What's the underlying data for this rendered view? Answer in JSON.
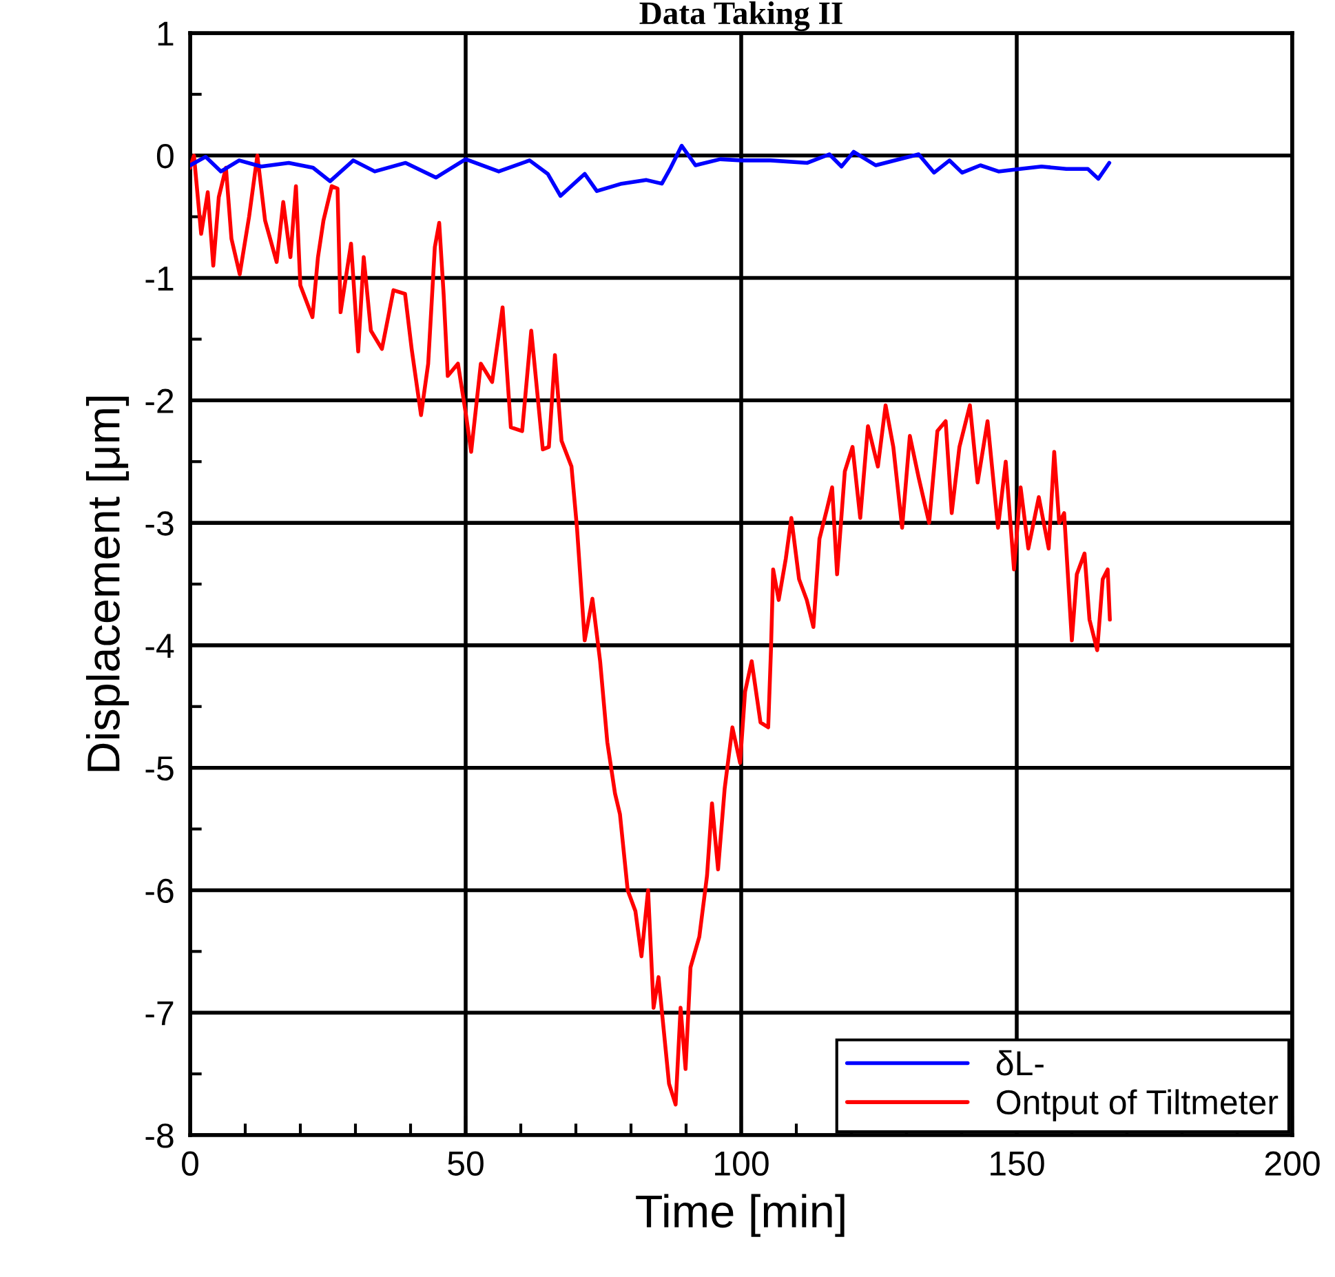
{
  "chart_data": {
    "type": "line",
    "title": "Data Taking II",
    "xlabel": "Time [min]",
    "ylabel": "Displacement [μm]",
    "xlim": [
      0,
      200
    ],
    "ylim": [
      -8,
      1
    ],
    "xticks": [
      0,
      {
        "value": 10,
        "label": null
      },
      {
        "value": 20,
        "label": null
      },
      {
        "value": 30,
        "label": null
      },
      {
        "value": 40,
        "label": null
      },
      50,
      {
        "value": 60,
        "label": null
      },
      {
        "value": 70,
        "label": null
      },
      {
        "value": 80,
        "label": null
      },
      {
        "value": 90,
        "label": null
      },
      100,
      {
        "value": 110,
        "label": null
      },
      {
        "value": 120,
        "label": null
      },
      {
        "value": 130,
        "label": null
      },
      {
        "value": 140,
        "label": null
      },
      150,
      {
        "value": 160,
        "label": null
      },
      {
        "value": 170,
        "label": null
      },
      {
        "value": 180,
        "label": null
      },
      {
        "value": 190,
        "label": null
      },
      200
    ],
    "yticks": [
      -8,
      {
        "value": -7.5,
        "label": null
      },
      -7,
      {
        "value": -6.5,
        "label": null
      },
      -6,
      {
        "value": -5.5,
        "label": null
      },
      -5,
      {
        "value": -4.5,
        "label": null
      },
      -4,
      {
        "value": -3.5,
        "label": null
      },
      -3,
      {
        "value": -2.5,
        "label": null
      },
      -2,
      {
        "value": -1.5,
        "label": null
      },
      -1,
      {
        "value": -0.5,
        "label": null
      },
      0,
      {
        "value": 0.5,
        "label": null
      },
      1
    ],
    "grid": true,
    "legend": "bottom right",
    "marker": "none",
    "line_style": "solid",
    "series": [
      {
        "name": "δL-",
        "color": "#0000ff",
        "x": [
          0,
          2.8,
          5.6,
          8.9,
          12.9,
          17.9,
          22.3,
          25.4,
          29.6,
          33.5,
          39.1,
          44.6,
          50,
          56,
          61.6,
          64.9,
          67.2,
          71.6,
          73.8,
          78.3,
          82.8,
          85.6,
          87.2,
          89.2,
          91.7,
          96.2,
          100,
          105.3,
          112,
          116,
          118.2,
          120.4,
          124.4,
          132.2,
          135,
          137.8,
          140.1,
          143.4,
          146.7,
          150.6,
          154.5,
          159,
          162.9,
          164.8,
          166.8
        ],
        "values": [
          -0.08,
          -0.01,
          -0.13,
          -0.04,
          -0.09,
          -0.06,
          -0.1,
          -0.21,
          -0.04,
          -0.13,
          -0.06,
          -0.18,
          -0.03,
          -0.13,
          -0.04,
          -0.15,
          -0.33,
          -0.15,
          -0.29,
          -0.23,
          -0.2,
          -0.23,
          -0.1,
          0.08,
          -0.08,
          -0.03,
          -0.04,
          -0.04,
          -0.06,
          0.01,
          -0.09,
          0.03,
          -0.08,
          0.01,
          -0.14,
          -0.04,
          -0.14,
          -0.08,
          -0.13,
          -0.11,
          -0.09,
          -0.11,
          -0.11,
          -0.19,
          -0.06
        ]
      },
      {
        "name": "Ontput of Tiltmeter",
        "color": "#ff0000",
        "x": [
          0,
          0.7,
          2,
          3.2,
          4.2,
          5.2,
          6.5,
          7.5,
          9,
          10.7,
          12.2,
          13.6,
          15.7,
          16.9,
          18.2,
          19.2,
          20,
          22.2,
          23.2,
          24.2,
          25.7,
          26.75,
          27.3,
          29.2,
          30.5,
          31.5,
          32.8,
          34.8,
          36.9,
          39,
          40.2,
          41.9,
          43.2,
          44.4,
          45.2,
          46,
          46.75,
          48.6,
          50,
          51,
          52.75,
          54.8,
          56.7,
          58.2,
          60.25,
          61.9,
          64,
          65.1,
          66.2,
          67.4,
          69.2,
          70.2,
          71.6,
          73,
          74.4,
          75.7,
          77.1,
          78,
          79.4,
          80.8,
          81.9,
          83.1,
          84.1,
          85,
          86.9,
          88.1,
          89,
          89.9,
          90.8,
          92.4,
          93.8,
          94.7,
          95.8,
          97,
          98.4,
          99.8,
          100.7,
          101.9,
          103.5,
          104.9,
          105.4,
          105.8,
          106.8,
          108.1,
          109.1,
          110.5,
          111.9,
          113.1,
          114.2,
          115.6,
          116.5,
          117.4,
          118.8,
          120.2,
          121.6,
          123,
          124.8,
          126.2,
          127.6,
          129.2,
          130.6,
          132.2,
          134.1,
          135.6,
          137.1,
          138.2,
          139.6,
          141.5,
          142.9,
          144.7,
          146.6,
          148,
          149.5,
          150.7,
          152.1,
          154,
          155.8,
          156.8,
          157.7,
          158.6,
          160,
          160.9,
          162.3,
          163.2,
          164.6,
          165.6,
          166.5,
          166.9
        ],
        "values": [
          -0.1,
          0.0,
          -0.64,
          -0.3,
          -0.9,
          -0.34,
          -0.1,
          -0.68,
          -0.97,
          -0.5,
          0.0,
          -0.53,
          -0.87,
          -0.38,
          -0.83,
          -0.25,
          -1.06,
          -1.32,
          -0.83,
          -0.53,
          -0.25,
          -0.27,
          -1.28,
          -0.72,
          -1.6,
          -0.83,
          -1.43,
          -1.58,
          -1.1,
          -1.13,
          -1.58,
          -2.12,
          -1.7,
          -0.75,
          -0.55,
          -1.13,
          -1.8,
          -1.7,
          -2.1,
          -2.42,
          -1.7,
          -1.85,
          -1.24,
          -2.22,
          -2.25,
          -1.43,
          -2.4,
          -2.38,
          -1.63,
          -2.33,
          -2.54,
          -3.04,
          -3.96,
          -3.62,
          -4.13,
          -4.79,
          -5.21,
          -5.38,
          -6.0,
          -6.17,
          -6.54,
          -6.0,
          -6.96,
          -6.71,
          -7.58,
          -7.75,
          -6.96,
          -7.46,
          -6.63,
          -6.38,
          -5.88,
          -5.29,
          -5.83,
          -5.17,
          -4.67,
          -4.96,
          -4.38,
          -4.13,
          -4.63,
          -4.67,
          -4.04,
          -3.38,
          -3.63,
          -3.29,
          -2.96,
          -3.46,
          -3.63,
          -3.85,
          -3.13,
          -2.88,
          -2.71,
          -3.42,
          -2.58,
          -2.38,
          -2.96,
          -2.21,
          -2.54,
          -2.04,
          -2.38,
          -3.04,
          -2.29,
          -2.63,
          -3.0,
          -2.25,
          -2.17,
          -2.92,
          -2.38,
          -2.04,
          -2.67,
          -2.17,
          -3.04,
          -2.5,
          -3.38,
          -2.71,
          -3.21,
          -2.79,
          -3.21,
          -2.42,
          -3.0,
          -2.92,
          -3.96,
          -3.42,
          -3.25,
          -3.79,
          -4.04,
          -3.46,
          -3.38,
          -3.79
        ]
      }
    ]
  }
}
